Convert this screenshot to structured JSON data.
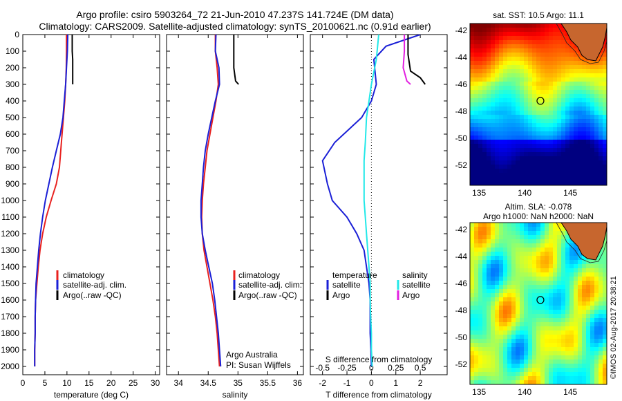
{
  "header": {
    "title_line1": "Argo profile: csiro 5903264_72 21-Jun-2010 47.237S 141.724E (DM data)",
    "title_line2": "Climatology: CARS2009. Satellite-adjusted climatology: synTS_20100621.nc (0.91d earlier)"
  },
  "stamp": "©IMOS 02-Aug-2017 20:38:21",
  "credit": {
    "line1": "Argo Australia",
    "line2": "PI: Susan Wijffels"
  },
  "colors": {
    "climatology": "#e8211f",
    "satellite": "#1a1fd6",
    "argo": "#000000",
    "sat_diff_S": "#22e8e8",
    "argo_diff_S": "#e21fe0"
  },
  "chart_data": [
    {
      "type": "line",
      "id": "temperature",
      "xlabel": "temperature (deg C)",
      "ylabel": "",
      "xlim": [
        0,
        31
      ],
      "ylim": [
        2050,
        0
      ],
      "xticks": [
        "0",
        "5",
        "10",
        "15",
        "20",
        "25",
        "30"
      ],
      "yticks": [
        "0",
        "100",
        "200",
        "300",
        "400",
        "500",
        "600",
        "700",
        "800",
        "900",
        "1000",
        "1100",
        "1200",
        "1300",
        "1400",
        "1500",
        "1600",
        "1700",
        "1800",
        "1900",
        "2000"
      ],
      "legend": [
        "climatology",
        "satellite-adj. clim.",
        "Argo(..raw -QC)"
      ],
      "series": [
        {
          "name": "climatology",
          "color": "#e8211f",
          "x": [
            9.9,
            9.9,
            9.85,
            9.7,
            9.5,
            9.2,
            8.9,
            8.6,
            8.3,
            7.6,
            6.4,
            5.3,
            4.5,
            3.9,
            3.5,
            3.2,
            2.9,
            2.8,
            2.8,
            2.7,
            2.7
          ],
          "y": [
            0,
            100,
            200,
            300,
            400,
            500,
            600,
            700,
            800,
            900,
            1000,
            1100,
            1200,
            1300,
            1400,
            1500,
            1600,
            1700,
            1800,
            1900,
            2000
          ]
        },
        {
          "name": "satellite-adj. clim.",
          "color": "#1a1fd6",
          "x": [
            10.2,
            10.1,
            9.9,
            9.7,
            9.4,
            9.1,
            8.5,
            7.6,
            6.7,
            5.9,
            5.1,
            4.5,
            4.0,
            3.6,
            3.3,
            3.0,
            2.9,
            2.8,
            2.8,
            2.7,
            2.7
          ],
          "y": [
            0,
            100,
            200,
            300,
            400,
            500,
            600,
            700,
            800,
            900,
            1000,
            1100,
            1200,
            1300,
            1400,
            1500,
            1600,
            1700,
            1800,
            1900,
            2000
          ]
        },
        {
          "name": "Argo(..raw -QC)",
          "color": "#000000",
          "x": [
            11.2,
            11.2,
            11.2,
            11.3,
            11.3,
            11.3,
            11.3
          ],
          "y": [
            0,
            50,
            100,
            150,
            200,
            250,
            300
          ]
        }
      ]
    },
    {
      "type": "line",
      "id": "salinity",
      "xlabel": "salinity",
      "xlim": [
        33.8,
        36.1
      ],
      "ylim": [
        2050,
        0
      ],
      "xticks": [
        "34",
        "34.5",
        "35",
        "35.5",
        "36"
      ],
      "legend": [
        "climatology",
        "satellite-adj. clim.",
        "Argo(..raw -QC)"
      ],
      "series": [
        {
          "name": "climatology",
          "color": "#e8211f",
          "x": [
            34.62,
            34.62,
            34.65,
            34.67,
            34.63,
            34.58,
            34.53,
            34.48,
            34.45,
            34.42,
            34.4,
            34.39,
            34.4,
            34.43,
            34.48,
            34.53,
            34.58,
            34.62,
            34.65,
            34.67,
            34.69
          ],
          "y": [
            0,
            100,
            200,
            300,
            400,
            500,
            600,
            700,
            800,
            900,
            1000,
            1100,
            1200,
            1300,
            1400,
            1500,
            1600,
            1700,
            1800,
            1900,
            2000
          ]
        },
        {
          "name": "satellite-adj. clim.",
          "color": "#1a1fd6",
          "x": [
            34.63,
            34.62,
            34.68,
            34.69,
            34.62,
            34.56,
            34.5,
            34.45,
            34.42,
            34.4,
            34.38,
            34.38,
            34.4,
            34.45,
            34.51,
            34.57,
            34.61,
            34.64,
            34.67,
            34.69,
            34.71
          ],
          "y": [
            0,
            100,
            200,
            300,
            400,
            500,
            600,
            700,
            800,
            900,
            1000,
            1100,
            1200,
            1300,
            1400,
            1500,
            1600,
            1700,
            1800,
            1900,
            2000
          ]
        },
        {
          "name": "Argo(..raw -QC)",
          "color": "#000000",
          "x": [
            34.93,
            34.93,
            34.93,
            34.93,
            34.93,
            34.96,
            35.01
          ],
          "y": [
            0,
            50,
            100,
            150,
            200,
            280,
            300
          ]
        }
      ]
    },
    {
      "type": "line",
      "id": "difference",
      "xlabel": "T difference from climatology",
      "xlabel_top": "S difference from climatology",
      "xlim": [
        -2.5,
        3.1
      ],
      "ylim": [
        2050,
        0
      ],
      "xticks_bottom": [
        "-2",
        "-1",
        "0",
        "1",
        "2"
      ],
      "xticks_top": [
        "-0.5",
        "-0.25",
        "0",
        "0.25",
        "0.5"
      ],
      "legend_temperature": {
        "title": "temperature",
        "items": [
          "satellite",
          "Argo"
        ]
      },
      "legend_salinity": {
        "title": "salinity",
        "items": [
          "satellite",
          "Argo"
        ]
      },
      "series": [
        {
          "name": "satellite",
          "color": "#1a1fd6",
          "x": [
            2.0,
            0.6,
            0.1,
            0.2,
            0.0,
            -0.4,
            -1.5,
            -2.0,
            -1.8,
            -1.6,
            -1.0,
            -0.6,
            -0.3,
            -0.2,
            -0.1,
            -0.05,
            -0.05,
            -0.05,
            -0.02,
            0.0
          ],
          "y": [
            0,
            70,
            150,
            300,
            400,
            500,
            650,
            760,
            900,
            1000,
            1100,
            1200,
            1300,
            1400,
            1500,
            1600,
            1700,
            1800,
            1900,
            2000
          ]
        },
        {
          "name": "Argo",
          "color": "#000000",
          "x": [
            1.5,
            1.5,
            1.6,
            2.0,
            2.2
          ],
          "y": [
            0,
            120,
            220,
            260,
            300
          ]
        },
        {
          "name": "satellite",
          "color": "#22e8e8",
          "x": [
            0.3,
            0.2,
            0.0,
            -0.1,
            -0.2,
            -0.25,
            -0.3,
            -0.3,
            -0.3,
            -0.25,
            -0.2,
            -0.15,
            -0.1,
            -0.05,
            -0.05,
            -0.03,
            0.0,
            0.0,
            0.02,
            0.03
          ],
          "y": [
            0,
            150,
            300,
            400,
            500,
            650,
            760,
            900,
            1000,
            1100,
            1200,
            1300,
            1400,
            1500,
            1600,
            1700,
            1800,
            1900,
            1950,
            2000
          ]
        },
        {
          "name": "Argo",
          "color": "#e21fe0",
          "x": [
            1.35,
            1.35,
            1.3,
            1.45,
            1.6
          ],
          "y": [
            0,
            100,
            200,
            280,
            300
          ]
        }
      ]
    },
    {
      "type": "heatmap",
      "id": "sst_map",
      "title": "sat. SST: 10.5 Argo: 11.1",
      "xlim": [
        134,
        149
      ],
      "ylim": [
        -53.5,
        -41.5
      ],
      "xticks": [
        "135",
        "140",
        "145"
      ],
      "yticks": [
        "-42",
        "-44",
        "-46",
        "-48",
        "-50",
        "-52"
      ],
      "argo_position": {
        "lon": 141.724,
        "lat": -47.237
      }
    },
    {
      "type": "heatmap",
      "id": "sla_map",
      "title_line1": "Altim. SLA: -0.078",
      "title_line2": "Argo h1000: NaN h2000: NaN",
      "xlim": [
        134,
        149
      ],
      "ylim": [
        -53.5,
        -41.5
      ],
      "xticks": [
        "135",
        "140",
        "145"
      ],
      "yticks": [
        "-42",
        "-44",
        "-46",
        "-48",
        "-50",
        "-52"
      ],
      "argo_position": {
        "lon": 141.724,
        "lat": -47.237
      }
    }
  ]
}
